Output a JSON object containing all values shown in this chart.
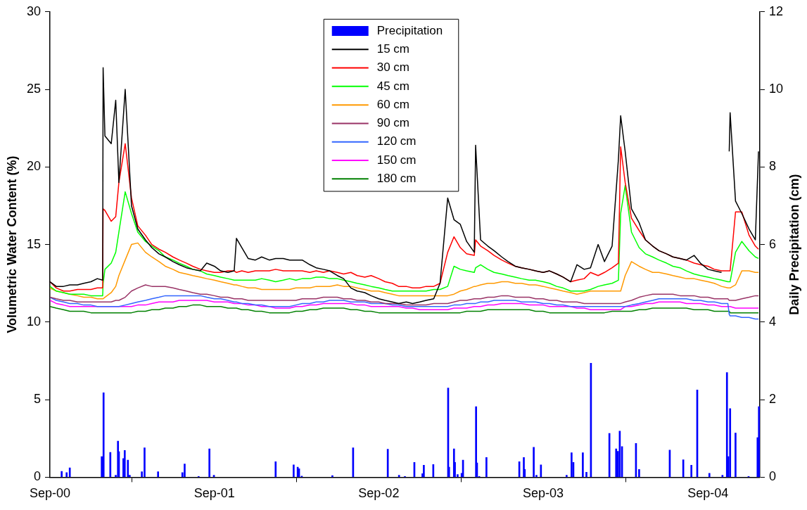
{
  "chart_data": {
    "type": "line",
    "ylabel": "Volumetric Water Content (%)",
    "y2label": "Daily Precipitation (cm)",
    "xlim": [
      "2000-09-01",
      "2004-12-25"
    ],
    "xticks": [
      {
        "value": "2000-09-01",
        "label": "Sep-00"
      },
      {
        "value": "2001-09-01",
        "label": "Sep-01"
      },
      {
        "value": "2002-09-01",
        "label": "Sep-02"
      },
      {
        "value": "2003-09-01",
        "label": "Sep-03"
      },
      {
        "value": "2004-09-01",
        "label": "Sep-04"
      }
    ],
    "ylim": [
      0,
      30
    ],
    "yticks": [
      0,
      5,
      10,
      15,
      20,
      25,
      30
    ],
    "y2lim": [
      0,
      12
    ],
    "y2ticks": [
      0,
      2,
      4,
      6,
      8,
      10,
      12
    ],
    "grid": false,
    "legend": "top",
    "marker": "none",
    "line_style": "solid",
    "x": [
      "2000-09-01",
      "2000-09-15",
      "2000-10-01",
      "2000-10-15",
      "2000-11-01",
      "2000-11-15",
      "2000-12-01",
      "2000-12-15",
      "2000-12-27",
      "2000-12-28",
      "2001-01-01",
      "2001-01-15",
      "2001-01-25",
      "2001-02-01",
      "2001-02-15",
      "2001-03-01",
      "2001-03-15",
      "2001-04-01",
      "2001-04-15",
      "2001-05-01",
      "2001-05-15",
      "2001-06-01",
      "2001-06-15",
      "2001-07-01",
      "2001-07-15",
      "2001-08-01",
      "2001-08-15",
      "2001-09-01",
      "2001-09-15",
      "2001-10-01",
      "2001-10-15",
      "2001-10-20",
      "2001-11-01",
      "2001-11-15",
      "2001-12-01",
      "2001-12-15",
      "2002-01-01",
      "2002-01-15",
      "2002-02-01",
      "2002-02-15",
      "2002-03-01",
      "2002-03-15",
      "2002-04-01",
      "2002-04-15",
      "2002-05-01",
      "2002-05-15",
      "2002-06-01",
      "2002-06-15",
      "2002-07-01",
      "2002-07-15",
      "2002-08-01",
      "2002-08-15",
      "2002-09-01",
      "2002-09-15",
      "2002-10-01",
      "2002-10-15",
      "2002-11-01",
      "2002-11-15",
      "2002-12-01",
      "2002-12-15",
      "2003-01-01",
      "2003-01-15",
      "2003-02-01",
      "2003-02-15",
      "2003-03-01",
      "2003-03-15",
      "2003-04-01",
      "2003-04-04",
      "2003-04-15",
      "2003-05-01",
      "2003-05-15",
      "2003-06-01",
      "2003-06-15",
      "2003-07-01",
      "2003-07-15",
      "2003-08-01",
      "2003-08-15",
      "2003-09-01",
      "2003-09-15",
      "2003-10-01",
      "2003-10-15",
      "2003-11-01",
      "2003-11-15",
      "2003-12-01",
      "2003-12-15",
      "2004-01-01",
      "2004-01-15",
      "2004-02-01",
      "2004-02-15",
      "2004-02-20",
      "2004-03-01",
      "2004-03-15",
      "2004-04-01",
      "2004-04-15",
      "2004-05-01",
      "2004-05-15",
      "2004-06-01",
      "2004-06-15",
      "2004-07-01",
      "2004-07-15",
      "2004-08-01",
      "2004-08-15",
      "2004-09-01",
      "2004-09-15",
      "2004-10-01",
      "2004-10-15",
      "2004-10-18",
      "2004-10-20",
      "2004-11-01",
      "2004-11-15",
      "2004-12-01",
      "2004-12-15",
      "2004-12-22"
    ],
    "series": [
      {
        "name": "Precipitation",
        "type": "bar",
        "axis": "y2",
        "color": "#0000ff",
        "x": [
          "2000-09-27",
          "2000-10-08",
          "2000-10-15",
          "2000-12-25",
          "2000-12-29",
          "2001-01-11",
          "2001-01-13",
          "2001-01-25",
          "2001-01-30",
          "2001-02-01",
          "2001-02-11",
          "2001-02-14",
          "2001-02-21",
          "2001-02-25",
          "2001-03-22",
          "2001-03-24",
          "2001-03-30",
          "2001-04-29",
          "2001-06-20",
          "2001-06-22",
          "2001-06-27",
          "2001-07-28",
          "2001-08-21",
          "2001-08-31",
          "2002-01-15",
          "2002-02-24",
          "2002-03-05",
          "2002-03-08",
          "2002-03-14",
          "2002-05-21",
          "2002-07-06",
          "2002-09-21",
          "2002-10-16",
          "2002-10-29",
          "2002-11-19",
          "2002-12-07",
          "2002-12-10",
          "2002-12-31",
          "2003-02-02",
          "2003-02-04",
          "2003-02-15",
          "2003-02-17",
          "2003-02-23",
          "2003-03-04",
          "2003-03-07",
          "2003-04-05",
          "2003-04-07",
          "2003-04-12",
          "2003-04-28",
          "2003-07-10",
          "2003-07-20",
          "2003-07-22",
          "2003-08-11",
          "2003-08-17",
          "2003-08-27",
          "2003-10-23",
          "2003-11-03",
          "2003-11-07",
          "2003-11-28",
          "2003-12-06",
          "2003-12-16",
          "2004-01-26",
          "2004-02-10",
          "2004-02-14",
          "2004-02-18",
          "2004-02-23",
          "2004-03-25",
          "2004-04-01",
          "2004-06-08",
          "2004-07-08",
          "2004-07-26",
          "2004-08-08",
          "2004-09-04",
          "2004-10-03",
          "2004-10-13",
          "2004-10-16",
          "2004-10-20",
          "2004-11-01",
          "2004-11-30",
          "2004-12-20",
          "2004-12-23"
        ],
        "values": [
          0.15,
          0.12,
          0.24,
          0.53,
          2.18,
          null,
          0.64,
          0.05,
          0.93,
          0.66,
          0.48,
          0.69,
          0.44,
          0.05,
          null,
          0.14,
          0.76,
          0.14,
          null,
          0.12,
          0.34,
          0.02,
          0.73,
          0.05,
          0.4,
          0.32,
          0.26,
          0.22,
          0.03,
          0.04,
          0.76,
          0.72,
          0.05,
          0.02,
          0.38,
          0.09,
          0.31,
          0.33,
          2.3,
          0.26,
          0.73,
          0.38,
          0.07,
          0.1,
          0.44,
          1.82,
          0.37,
          0.02,
          0.51,
          0.4,
          0.51,
          0.2,
          0.77,
          0.05,
          0.32,
          0.05,
          0.63,
          0.38,
          0.63,
          0.13,
          2.94,
          1.13,
          0.73,
          0.67,
          1.19,
          0.79,
          0.87,
          0.2,
          0.7,
          0.45,
          0.31,
          2.25,
          0.1,
          0.05,
          2.7,
          0.53,
          1.77,
          1.14,
          0.02,
          1.02,
          1.82
        ]
      },
      {
        "name": "15 cm",
        "color": "#000000",
        "values": [
          12.6,
          12.3,
          12.3,
          12.4,
          12.4,
          12.5,
          12.6,
          12.8,
          12.7,
          26.4,
          22.0,
          21.5,
          24.3,
          19.0,
          25.0,
          17.5,
          16.0,
          15.3,
          14.8,
          14.4,
          14.2,
          13.9,
          13.7,
          13.5,
          13.4,
          13.3,
          13.8,
          13.6,
          13.3,
          13.2,
          13.3,
          15.4,
          14.8,
          14.1,
          14.0,
          14.2,
          14.0,
          14.1,
          14.1,
          14.0,
          14.0,
          14.0,
          13.7,
          13.5,
          13.4,
          13.3,
          13.0,
          12.8,
          12.2,
          12.0,
          11.9,
          11.7,
          11.5,
          11.4,
          11.3,
          11.2,
          11.3,
          11.2,
          11.3,
          11.4,
          11.5,
          12.5,
          18.0,
          16.6,
          16.3,
          15.2,
          14.5,
          21.4,
          15.3,
          14.9,
          14.6,
          14.2,
          13.9,
          13.6,
          13.5,
          13.4,
          13.3,
          13.2,
          13.3,
          13.1,
          12.9,
          12.6,
          13.7,
          13.4,
          13.5,
          15.0,
          13.9,
          14.9,
          20.5,
          23.3,
          21.0,
          17.3,
          16.4,
          15.3,
          14.9,
          14.6,
          14.4,
          14.2,
          14.1,
          14.0,
          14.3,
          13.8,
          13.4,
          13.3,
          13.2,
          null,
          21.0,
          23.5,
          17.8,
          17.0,
          16.0,
          15.3,
          21.0
        ]
      },
      {
        "name": "30 cm",
        "color": "#ff0000",
        "values": [
          12.6,
          12.2,
          12.0,
          12.0,
          12.1,
          12.1,
          12.1,
          12.2,
          12.2,
          17.3,
          17.2,
          16.5,
          16.8,
          19.0,
          21.5,
          18.0,
          16.2,
          15.6,
          15.0,
          14.7,
          14.5,
          14.2,
          14.0,
          13.8,
          13.6,
          13.4,
          13.3,
          13.2,
          13.2,
          13.3,
          13.3,
          13.2,
          13.3,
          13.2,
          13.3,
          13.3,
          13.3,
          13.4,
          13.3,
          13.3,
          13.3,
          13.3,
          13.2,
          13.3,
          13.2,
          13.3,
          13.2,
          13.1,
          13.2,
          13.0,
          12.9,
          13.0,
          12.8,
          12.6,
          12.5,
          12.3,
          12.3,
          12.2,
          12.2,
          12.3,
          12.3,
          12.5,
          14.5,
          15.5,
          14.8,
          14.4,
          14.3,
          15.3,
          14.9,
          14.6,
          14.3,
          14.0,
          13.8,
          13.6,
          13.5,
          13.4,
          13.3,
          13.2,
          13.3,
          13.1,
          12.9,
          12.6,
          12.7,
          12.8,
          13.2,
          13.0,
          13.2,
          13.5,
          13.8,
          21.3,
          19.0,
          16.7,
          15.9,
          15.3,
          14.9,
          14.6,
          14.4,
          14.2,
          14.1,
          14.0,
          13.8,
          13.7,
          13.6,
          13.4,
          13.3,
          13.3,
          13.3,
          13.3,
          17.1,
          17.1,
          15.6,
          14.9,
          14.7
        ]
      },
      {
        "name": "45 cm",
        "color": "#00ff00",
        "values": [
          12.3,
          12.0,
          11.9,
          11.8,
          11.8,
          11.8,
          11.7,
          11.7,
          11.7,
          12.5,
          13.4,
          13.8,
          14.5,
          15.8,
          18.4,
          17.0,
          15.8,
          15.2,
          14.9,
          14.6,
          14.2,
          14.0,
          13.8,
          13.6,
          13.4,
          13.3,
          13.1,
          13.0,
          12.9,
          12.8,
          12.7,
          12.7,
          12.7,
          12.7,
          12.7,
          12.8,
          12.7,
          12.6,
          12.7,
          12.8,
          12.7,
          12.8,
          12.8,
          12.9,
          12.9,
          12.8,
          12.8,
          12.7,
          12.6,
          12.5,
          12.4,
          12.3,
          12.2,
          12.1,
          12.0,
          12.0,
          12.0,
          12.0,
          12.0,
          12.0,
          12.1,
          12.1,
          12.3,
          13.6,
          13.4,
          13.3,
          13.2,
          13.5,
          13.7,
          13.4,
          13.2,
          13.1,
          13.0,
          12.9,
          12.8,
          12.7,
          12.7,
          12.6,
          12.5,
          12.3,
          12.2,
          12.0,
          12.0,
          12.0,
          12.1,
          12.3,
          12.4,
          12.5,
          12.7,
          17.0,
          18.8,
          15.8,
          14.8,
          14.4,
          14.2,
          14.0,
          13.8,
          13.6,
          13.5,
          13.3,
          13.1,
          13.0,
          12.9,
          12.8,
          12.7,
          12.6,
          12.6,
          12.6,
          14.5,
          15.2,
          14.6,
          14.2,
          14.1
        ]
      },
      {
        "name": "60 cm",
        "color": "#ff9900",
        "values": [
          12.2,
          12.0,
          11.9,
          11.8,
          11.7,
          11.6,
          11.6,
          11.5,
          11.5,
          11.5,
          11.6,
          11.9,
          12.3,
          13.0,
          14.0,
          15.0,
          15.1,
          14.5,
          14.2,
          13.9,
          13.6,
          13.4,
          13.2,
          13.1,
          13.0,
          12.9,
          12.8,
          12.7,
          12.6,
          12.5,
          12.4,
          12.4,
          12.3,
          12.2,
          12.2,
          12.1,
          12.1,
          12.1,
          12.1,
          12.1,
          12.2,
          12.2,
          12.2,
          12.3,
          12.3,
          12.3,
          12.4,
          12.3,
          12.3,
          12.2,
          12.1,
          12.0,
          12.0,
          11.9,
          11.8,
          11.7,
          11.7,
          11.7,
          11.7,
          11.7,
          11.7,
          11.7,
          11.7,
          11.8,
          12.0,
          12.1,
          12.3,
          12.3,
          12.4,
          12.5,
          12.5,
          12.6,
          12.6,
          12.5,
          12.5,
          12.4,
          12.4,
          12.3,
          12.2,
          12.1,
          12.0,
          11.9,
          11.8,
          11.9,
          12.0,
          12.0,
          12.0,
          12.0,
          12.0,
          12.0,
          13.0,
          13.9,
          13.6,
          13.4,
          13.2,
          13.2,
          13.1,
          13.0,
          12.9,
          12.8,
          12.8,
          12.7,
          12.6,
          12.5,
          12.3,
          12.2,
          12.2,
          12.2,
          12.4,
          13.3,
          13.3,
          13.2,
          13.2
        ]
      },
      {
        "name": "90 cm",
        "color": "#993366",
        "values": [
          11.6,
          11.5,
          11.4,
          11.4,
          11.3,
          11.3,
          11.3,
          11.3,
          11.3,
          11.3,
          11.3,
          11.3,
          11.4,
          11.4,
          11.6,
          12.0,
          12.2,
          12.4,
          12.3,
          12.3,
          12.3,
          12.2,
          12.1,
          12.0,
          11.9,
          11.8,
          11.8,
          11.7,
          11.6,
          11.6,
          11.5,
          11.5,
          11.5,
          11.4,
          11.4,
          11.4,
          11.4,
          11.4,
          11.4,
          11.4,
          11.4,
          11.5,
          11.5,
          11.5,
          11.6,
          11.6,
          11.6,
          11.5,
          11.5,
          11.4,
          11.4,
          11.3,
          11.3,
          11.2,
          11.2,
          11.2,
          11.1,
          11.1,
          11.1,
          11.1,
          11.2,
          11.2,
          11.2,
          11.3,
          11.4,
          11.4,
          11.5,
          11.5,
          11.5,
          11.6,
          11.6,
          11.7,
          11.7,
          11.6,
          11.6,
          11.6,
          11.5,
          11.5,
          11.4,
          11.4,
          11.3,
          11.3,
          11.3,
          11.2,
          11.2,
          11.2,
          11.2,
          11.2,
          11.2,
          11.2,
          11.3,
          11.4,
          11.6,
          11.7,
          11.8,
          11.8,
          11.8,
          11.8,
          11.7,
          11.7,
          11.7,
          11.6,
          11.6,
          11.5,
          11.5,
          11.5,
          11.4,
          11.4,
          11.4,
          11.5,
          11.6,
          11.7,
          11.7
        ]
      },
      {
        "name": "120 cm",
        "color": "#3366ff",
        "values": [
          11.6,
          11.4,
          11.3,
          11.2,
          11.2,
          11.1,
          11.1,
          11.0,
          11.0,
          11.0,
          11.0,
          11.0,
          11.0,
          11.0,
          11.1,
          11.2,
          11.3,
          11.4,
          11.5,
          11.6,
          11.7,
          11.7,
          11.7,
          11.7,
          11.7,
          11.7,
          11.6,
          11.5,
          11.5,
          11.4,
          11.3,
          11.3,
          11.2,
          11.2,
          11.1,
          11.1,
          11.0,
          11.0,
          11.0,
          11.0,
          11.1,
          11.2,
          11.2,
          11.3,
          11.3,
          11.4,
          11.4,
          11.4,
          11.3,
          11.3,
          11.3,
          11.2,
          11.2,
          11.2,
          11.1,
          11.1,
          11.0,
          11.0,
          11.0,
          11.0,
          11.0,
          11.0,
          11.0,
          11.1,
          11.1,
          11.2,
          11.2,
          11.2,
          11.3,
          11.3,
          11.4,
          11.4,
          11.4,
          11.4,
          11.3,
          11.3,
          11.3,
          11.2,
          11.2,
          11.1,
          11.1,
          11.0,
          11.0,
          11.0,
          11.0,
          11.0,
          11.0,
          11.0,
          11.0,
          11.0,
          11.0,
          11.1,
          11.2,
          11.3,
          11.4,
          11.5,
          11.5,
          11.5,
          11.5,
          11.5,
          11.4,
          11.4,
          11.3,
          11.3,
          11.2,
          11.2,
          10.5,
          10.4,
          10.4,
          10.3,
          10.3,
          10.2,
          10.2
        ]
      },
      {
        "name": "150 cm",
        "color": "#ff00ff",
        "values": [
          11.4,
          11.2,
          11.1,
          11.0,
          11.0,
          11.0,
          11.0,
          11.0,
          11.0,
          11.0,
          11.0,
          11.0,
          11.0,
          11.0,
          11.0,
          11.0,
          11.1,
          11.1,
          11.2,
          11.3,
          11.3,
          11.3,
          11.4,
          11.4,
          11.4,
          11.4,
          11.4,
          11.3,
          11.3,
          11.3,
          11.2,
          11.2,
          11.2,
          11.1,
          11.1,
          11.0,
          11.0,
          10.9,
          10.9,
          10.9,
          11.0,
          11.0,
          11.1,
          11.1,
          11.2,
          11.2,
          11.2,
          11.2,
          11.2,
          11.1,
          11.1,
          11.0,
          11.0,
          11.0,
          11.0,
          11.0,
          10.9,
          10.9,
          10.8,
          10.8,
          10.8,
          10.8,
          10.8,
          10.9,
          10.9,
          10.9,
          11.0,
          11.0,
          11.0,
          11.1,
          11.1,
          11.2,
          11.2,
          11.2,
          11.2,
          11.1,
          11.1,
          11.1,
          11.0,
          11.0,
          11.0,
          11.0,
          10.9,
          10.9,
          10.8,
          10.8,
          10.8,
          10.8,
          10.8,
          10.8,
          11.0,
          11.0,
          11.1,
          11.2,
          11.2,
          11.3,
          11.3,
          11.3,
          11.3,
          11.2,
          11.2,
          11.2,
          11.1,
          11.1,
          11.0,
          11.0,
          11.0,
          11.0,
          10.9,
          10.9,
          10.9,
          10.9,
          10.9
        ]
      },
      {
        "name": "180 cm",
        "color": "#008000",
        "values": [
          11.0,
          10.9,
          10.8,
          10.7,
          10.7,
          10.7,
          10.6,
          10.6,
          10.6,
          10.6,
          10.6,
          10.6,
          10.6,
          10.6,
          10.6,
          10.6,
          10.7,
          10.7,
          10.8,
          10.8,
          10.9,
          10.9,
          11.0,
          11.0,
          11.1,
          11.1,
          11.0,
          11.0,
          11.0,
          10.9,
          10.9,
          10.9,
          10.8,
          10.8,
          10.7,
          10.7,
          10.6,
          10.6,
          10.6,
          10.6,
          10.7,
          10.7,
          10.8,
          10.8,
          10.9,
          10.9,
          10.9,
          10.9,
          10.8,
          10.8,
          10.7,
          10.7,
          10.6,
          10.6,
          10.6,
          10.6,
          10.6,
          10.6,
          10.6,
          10.6,
          10.6,
          10.6,
          10.6,
          10.6,
          10.6,
          10.7,
          10.7,
          10.7,
          10.7,
          10.8,
          10.8,
          10.8,
          10.8,
          10.8,
          10.8,
          10.8,
          10.7,
          10.7,
          10.6,
          10.6,
          10.6,
          10.6,
          10.6,
          10.6,
          10.6,
          10.6,
          10.6,
          10.7,
          10.7,
          10.7,
          10.7,
          10.7,
          10.8,
          10.8,
          10.9,
          10.9,
          10.9,
          10.9,
          10.9,
          10.9,
          10.8,
          10.8,
          10.8,
          10.7,
          10.7,
          10.7,
          10.7,
          10.6,
          10.6,
          10.6,
          10.6,
          10.6,
          10.6
        ]
      }
    ]
  }
}
